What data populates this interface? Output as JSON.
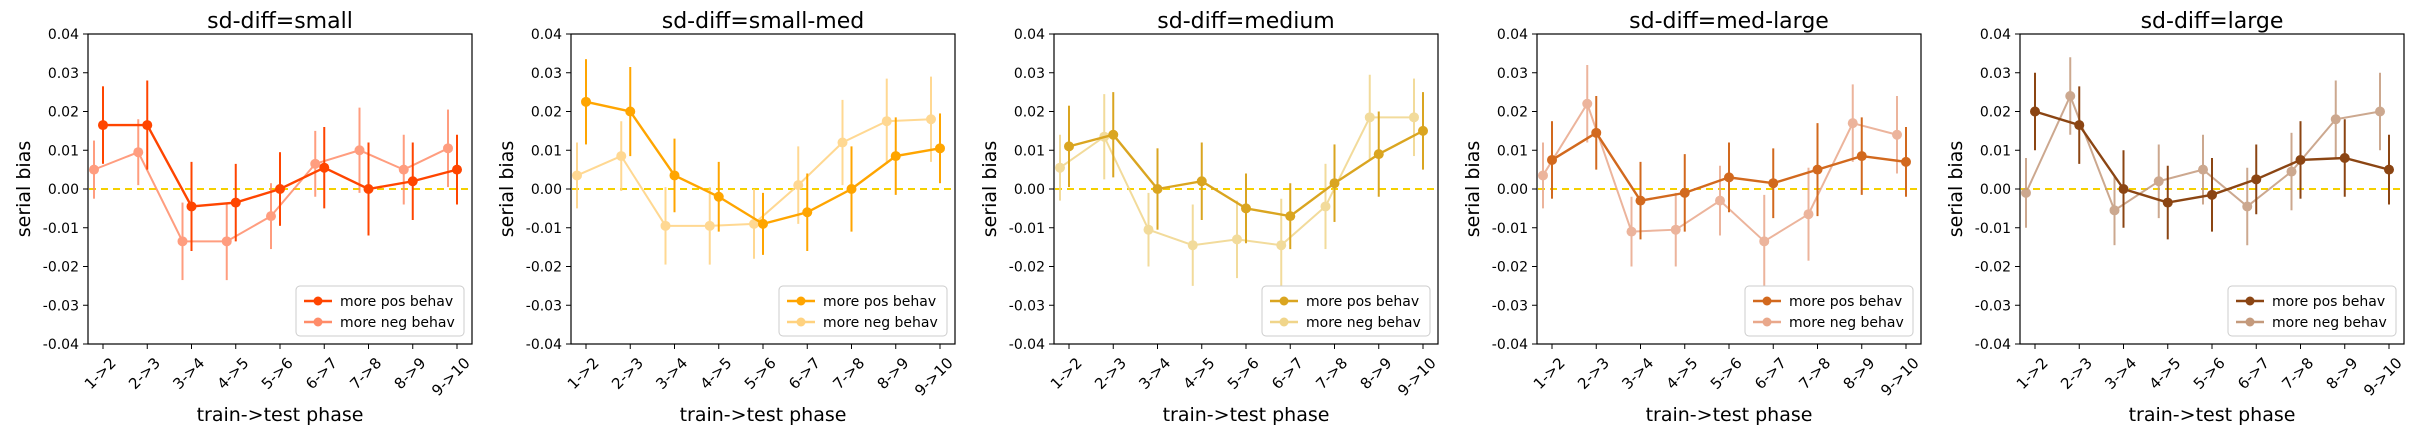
{
  "chart_data": [
    {
      "type": "line",
      "title": "sd-diff=small",
      "xlabel": "train->test phase",
      "ylabel": "serial bias",
      "categories": [
        "1->2",
        "2->3",
        "3->4",
        "4->5",
        "5->6",
        "6->7",
        "7->8",
        "8->9",
        "9->10"
      ],
      "ylim": [
        -0.04,
        0.04
      ],
      "yticks": [
        "0.04",
        "0.03",
        "0.02",
        "0.01",
        "0.00",
        "-0.01",
        "-0.02",
        "-0.03",
        "-0.04"
      ],
      "reference_line": {
        "y": 0.0,
        "color": "#f5d000",
        "style": "dashed"
      },
      "legend_position": "lower right",
      "series": [
        {
          "name": "more pos behav",
          "color": "#ff4500",
          "values": [
            0.0165,
            0.0165,
            -0.0045,
            -0.0035,
            0.0,
            0.0055,
            0.0,
            0.002,
            0.005
          ],
          "errors": [
            0.01,
            0.0115,
            0.0115,
            0.01,
            0.0095,
            0.0105,
            0.012,
            0.01,
            0.009
          ]
        },
        {
          "name": "more neg behav",
          "color": "#ff8c69",
          "values": [
            0.005,
            0.0095,
            -0.0135,
            -0.0135,
            -0.007,
            0.0065,
            0.01,
            0.005,
            0.0105
          ],
          "errors": [
            0.0075,
            0.0085,
            0.01,
            0.01,
            0.0085,
            0.0085,
            0.011,
            0.009,
            0.01
          ]
        }
      ]
    },
    {
      "type": "line",
      "title": "sd-diff=small-med",
      "xlabel": "train->test phase",
      "ylabel": "serial bias",
      "categories": [
        "1->2",
        "2->3",
        "3->4",
        "4->5",
        "5->6",
        "6->7",
        "7->8",
        "8->9",
        "9->10"
      ],
      "ylim": [
        -0.04,
        0.04
      ],
      "yticks": [
        "0.04",
        "0.03",
        "0.02",
        "0.01",
        "0.00",
        "-0.01",
        "-0.02",
        "-0.03",
        "-0.04"
      ],
      "reference_line": {
        "y": 0.0,
        "color": "#f5d000",
        "style": "dashed"
      },
      "legend_position": "lower right",
      "series": [
        {
          "name": "more pos behav",
          "color": "#ffa500",
          "values": [
            0.0225,
            0.02,
            0.0035,
            -0.002,
            -0.009,
            -0.006,
            0.0,
            0.0085,
            0.0105
          ],
          "errors": [
            0.011,
            0.0115,
            0.0095,
            0.009,
            0.008,
            0.01,
            0.011,
            0.01,
            0.009
          ]
        },
        {
          "name": "more neg behav",
          "color": "#ffd27f",
          "values": [
            0.0035,
            0.0085,
            -0.0095,
            -0.0095,
            -0.009,
            0.001,
            0.012,
            0.0175,
            0.018
          ],
          "errors": [
            0.0085,
            0.009,
            0.01,
            0.01,
            0.009,
            0.01,
            0.011,
            0.011,
            0.011
          ]
        }
      ]
    },
    {
      "type": "line",
      "title": "sd-diff=medium",
      "xlabel": "train->test phase",
      "ylabel": "serial bias",
      "categories": [
        "1->2",
        "2->3",
        "3->4",
        "4->5",
        "5->6",
        "6->7",
        "7->8",
        "8->9",
        "9->10"
      ],
      "ylim": [
        -0.04,
        0.04
      ],
      "yticks": [
        "0.04",
        "0.03",
        "0.02",
        "0.01",
        "0.00",
        "-0.01",
        "-0.02",
        "-0.03",
        "-0.04"
      ],
      "reference_line": {
        "y": 0.0,
        "color": "#f5d000",
        "style": "dashed"
      },
      "legend_position": "lower right",
      "series": [
        {
          "name": "more pos behav",
          "color": "#daa520",
          "values": [
            0.011,
            0.014,
            0.0,
            0.002,
            -0.005,
            -0.007,
            0.0015,
            0.009,
            0.015
          ],
          "errors": [
            0.0105,
            0.011,
            0.0105,
            0.01,
            0.009,
            0.0085,
            0.01,
            0.011,
            0.01
          ]
        },
        {
          "name": "more neg behav",
          "color": "#f0d58a",
          "values": [
            0.0055,
            0.0135,
            -0.0105,
            -0.0145,
            -0.013,
            -0.0145,
            -0.0045,
            0.0185,
            0.0185
          ],
          "errors": [
            0.0085,
            0.011,
            0.0095,
            0.0105,
            0.01,
            0.012,
            0.011,
            0.011,
            0.01
          ]
        }
      ]
    },
    {
      "type": "line",
      "title": "sd-diff=med-large",
      "xlabel": "train->test phase",
      "ylabel": "serial bias",
      "categories": [
        "1->2",
        "2->3",
        "3->4",
        "4->5",
        "5->6",
        "6->7",
        "7->8",
        "8->9",
        "9->10"
      ],
      "ylim": [
        -0.04,
        0.04
      ],
      "yticks": [
        "0.04",
        "0.03",
        "0.02",
        "0.01",
        "0.00",
        "-0.01",
        "-0.02",
        "-0.03",
        "-0.04"
      ],
      "reference_line": {
        "y": 0.0,
        "color": "#f5d000",
        "style": "dashed"
      },
      "legend_position": "lower right",
      "series": [
        {
          "name": "more pos behav",
          "color": "#d2691e",
          "values": [
            0.0075,
            0.0145,
            -0.003,
            -0.001,
            0.003,
            0.0015,
            0.005,
            0.0085,
            0.007
          ],
          "errors": [
            0.01,
            0.0095,
            0.01,
            0.01,
            0.009,
            0.009,
            0.012,
            0.01,
            0.009
          ]
        },
        {
          "name": "more neg behav",
          "color": "#e9a88b",
          "values": [
            0.0035,
            0.022,
            -0.011,
            -0.0105,
            -0.003,
            -0.0135,
            -0.0065,
            0.017,
            0.014
          ],
          "errors": [
            0.0085,
            0.01,
            0.009,
            0.0095,
            0.009,
            0.012,
            0.012,
            0.01,
            0.01
          ]
        }
      ]
    },
    {
      "type": "line",
      "title": "sd-diff=large",
      "xlabel": "train->test phase",
      "ylabel": "serial bias",
      "categories": [
        "1->2",
        "2->3",
        "3->4",
        "4->5",
        "5->6",
        "6->7",
        "7->8",
        "8->9",
        "9->10"
      ],
      "ylim": [
        -0.04,
        0.04
      ],
      "yticks": [
        "0.04",
        "0.03",
        "0.02",
        "0.01",
        "0.00",
        "-0.01",
        "-0.02",
        "-0.03",
        "-0.04"
      ],
      "reference_line": {
        "y": 0.0,
        "color": "#f5d000",
        "style": "dashed"
      },
      "legend_position": "lower right",
      "series": [
        {
          "name": "more pos behav",
          "color": "#8b4513",
          "values": [
            0.02,
            0.0165,
            0.0,
            -0.0035,
            -0.0015,
            0.0025,
            0.0075,
            0.008,
            0.005
          ],
          "errors": [
            0.01,
            0.01,
            0.01,
            0.0095,
            0.0095,
            0.009,
            0.01,
            0.01,
            0.009
          ]
        },
        {
          "name": "more neg behav",
          "color": "#c49a7c",
          "values": [
            -0.001,
            0.024,
            -0.0055,
            0.002,
            0.005,
            -0.0045,
            0.0045,
            0.018,
            0.02
          ],
          "errors": [
            0.009,
            0.01,
            0.009,
            0.0095,
            0.009,
            0.01,
            0.01,
            0.01,
            0.01
          ]
        }
      ]
    }
  ]
}
